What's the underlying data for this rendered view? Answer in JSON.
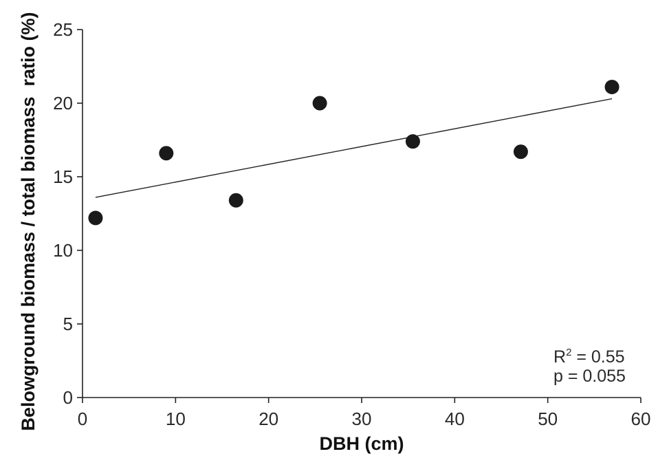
{
  "chart_data": {
    "type": "scatter",
    "title": "",
    "xlabel": "DBH (cm)",
    "ylabel": "Belowground biomass / total biomass  ratio (%)",
    "xlim": [
      0,
      60
    ],
    "ylim": [
      0,
      25
    ],
    "x_ticks": [
      "0",
      "10",
      "20",
      "30",
      "40",
      "50",
      "60"
    ],
    "y_ticks": [
      "0",
      "5",
      "10",
      "15",
      "20",
      "25"
    ],
    "grid": false,
    "legend": "none",
    "marker_color": "#1a1a1a",
    "points": [
      {
        "x": 1.4,
        "y": 12.2
      },
      {
        "x": 9.0,
        "y": 16.6
      },
      {
        "x": 16.5,
        "y": 13.4
      },
      {
        "x": 25.5,
        "y": 20.0
      },
      {
        "x": 35.5,
        "y": 17.4
      },
      {
        "x": 47.1,
        "y": 16.7
      },
      {
        "x": 56.9,
        "y": 21.1
      }
    ],
    "trendline": {
      "x": [
        1.4,
        56.9
      ],
      "y": [
        13.6,
        20.3
      ]
    },
    "annotations": {
      "r2_prefix": "R",
      "r2_sup": "2",
      "r2_value": " = 0.55",
      "p_text": "p = 0.055"
    }
  }
}
